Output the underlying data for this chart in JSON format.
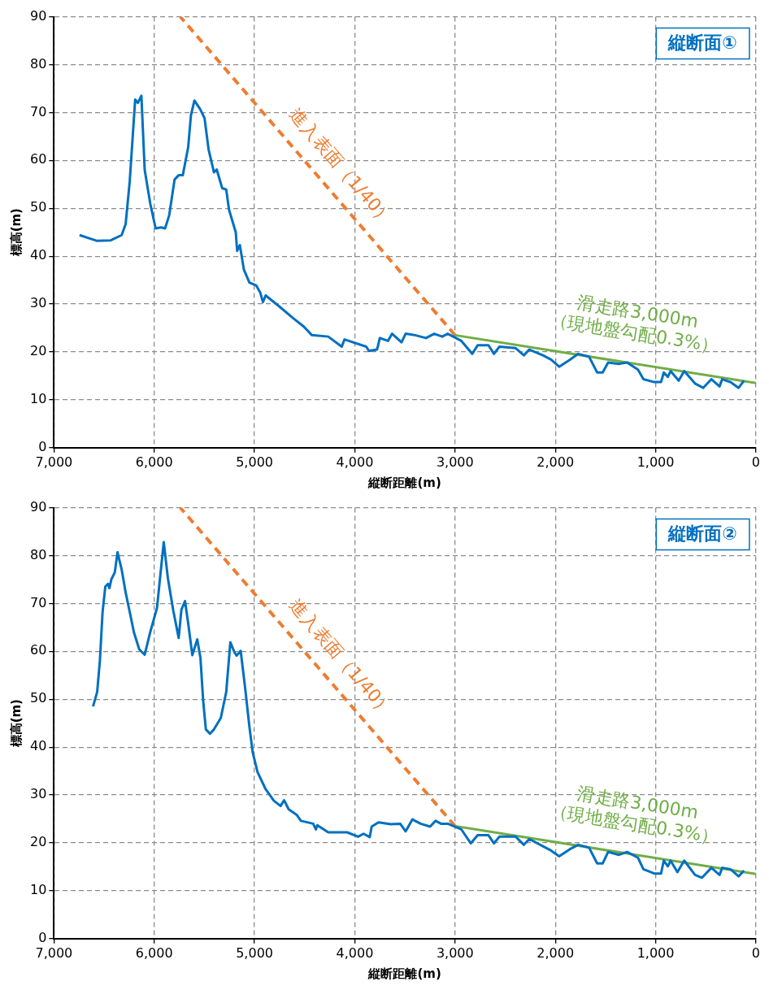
{
  "chart_data": [
    {
      "type": "line",
      "title": "縦断面①",
      "xlabel": "縦断距離(m)",
      "ylabel": "標高(m)",
      "xlim": [
        7000,
        0
      ],
      "xticks": [
        {
          "value": 7000,
          "label": "7,000"
        },
        {
          "value": 6000,
          "label": "6,000"
        },
        {
          "value": 5000,
          "label": "5,000"
        },
        {
          "value": 4000,
          "label": "4,000"
        },
        {
          "value": 3000,
          "label": "3,000"
        },
        {
          "value": 2000,
          "label": "2,000"
        },
        {
          "value": 1000,
          "label": "1,000"
        },
        0
      ],
      "ylim": [
        0,
        90
      ],
      "yticks": [
        0,
        10,
        20,
        30,
        40,
        50,
        60,
        70,
        80,
        90
      ],
      "grid": true,
      "legend": false,
      "marker": "none",
      "series": [
        {
          "color": "#0070c0",
          "line_style": "solid",
          "x": [
            6745,
            6569,
            6433,
            6325,
            6285,
            6244,
            6190,
            6163,
            6128,
            6095,
            6040,
            5986,
            5932,
            5892,
            5851,
            5797,
            5756,
            5715,
            5661,
            5634,
            5599,
            5539,
            5498,
            5458,
            5404,
            5377,
            5322,
            5282,
            5254,
            5187,
            5173,
            5146,
            5106,
            5051,
            4984,
            4943,
            4916,
            4889,
            4753,
            4618,
            4509,
            4428,
            4265,
            4130,
            4103,
            3886,
            3859,
            3778,
            3750,
            3669,
            3628,
            3534,
            3493,
            3398,
            3290,
            3208,
            3128,
            3073,
            2937,
            2829,
            2775,
            2667,
            2612,
            2558,
            2396,
            2314,
            2260,
            2124,
            2043,
            1962,
            1854,
            1772,
            1664,
            1583,
            1528,
            1474,
            1366,
            1285,
            1176,
            1122,
            1014,
            946,
            919,
            878,
            851,
            770,
            715,
            607,
            526,
            444,
            363,
            336,
            254,
            173,
            119
          ],
          "values": [
            44.4,
            43.2,
            43.3,
            44.4,
            46.7,
            55.7,
            72.7,
            72,
            73.5,
            58,
            51,
            45.8,
            46,
            45.8,
            48.5,
            56,
            56.9,
            56.9,
            62.8,
            69.4,
            72.5,
            70.6,
            68.8,
            62.3,
            57.5,
            58.1,
            54.2,
            53.9,
            49.7,
            45,
            41.1,
            42.3,
            37.2,
            34.5,
            33.9,
            32.4,
            30.4,
            31.8,
            29.5,
            27.1,
            25.3,
            23.5,
            23.2,
            21.1,
            22.6,
            21.1,
            20.2,
            20.5,
            22.9,
            22.3,
            23.8,
            22,
            23.8,
            23.5,
            22.9,
            23.8,
            23.2,
            23.8,
            22.3,
            19.6,
            21.4,
            21.4,
            19.6,
            21.1,
            20.8,
            19.3,
            20.5,
            19.3,
            18.4,
            16.9,
            18.4,
            19.6,
            19,
            15.7,
            15.7,
            17.8,
            17.5,
            17.8,
            16.3,
            14.3,
            13.7,
            13.7,
            15.7,
            14.8,
            16,
            14,
            16,
            13.4,
            12.5,
            14.3,
            12.8,
            14.3,
            13.7,
            12.5,
            14
          ]
        },
        {
          "name": "進入表面（1/40）",
          "color": "#ed7d31",
          "line_style": "dashed",
          "x": [
            3000,
            5740
          ],
          "values": [
            23.5,
            90
          ]
        },
        {
          "name": "滑走路3,000m\n（現地盤勾配0.3%）",
          "color": "#70ad47",
          "line_style": "solid",
          "x": [
            3000,
            0
          ],
          "values": [
            23.5,
            13.5
          ]
        }
      ]
    },
    {
      "type": "line",
      "title": "縦断面②",
      "xlabel": "縦断距離(m)",
      "ylabel": "標高(m)",
      "xlim": [
        7000,
        0
      ],
      "xticks": [
        {
          "value": 7000,
          "label": "7,000"
        },
        {
          "value": 6000,
          "label": "6,000"
        },
        {
          "value": 5000,
          "label": "5,000"
        },
        {
          "value": 4000,
          "label": "4,000"
        },
        {
          "value": 3000,
          "label": "3,000"
        },
        {
          "value": 2000,
          "label": "2,000"
        },
        {
          "value": 1000,
          "label": "1,000"
        },
        0
      ],
      "ylim": [
        0,
        90
      ],
      "yticks": [
        0,
        10,
        20,
        30,
        40,
        50,
        60,
        70,
        80,
        90
      ],
      "grid": true,
      "legend": false,
      "marker": "none",
      "series": [
        {
          "color": "#0070c0",
          "line_style": "solid",
          "x": [
            6610,
            6569,
            6542,
            6515,
            6488,
            6461,
            6447,
            6428,
            6393,
            6366,
            6325,
            6285,
            6244,
            6203,
            6149,
            6095,
            6040,
            5972,
            5945,
            5905,
            5864,
            5810,
            5756,
            5729,
            5693,
            5661,
            5620,
            5571,
            5539,
            5512,
            5485,
            5444,
            5404,
            5336,
            5282,
            5241,
            5200,
            5178,
            5138,
            5092,
            5051,
            5018,
            4970,
            4889,
            4807,
            4740,
            4705,
            4659,
            4577,
            4537,
            4415,
            4388,
            4374,
            4265,
            4076,
            3967,
            3913,
            3851,
            3832,
            3764,
            3642,
            3547,
            3493,
            3425,
            3344,
            3249,
            3195,
            3141,
            3073,
            2937,
            2843,
            2775,
            2667,
            2612,
            2558,
            2396,
            2314,
            2260,
            2124,
            2043,
            1962,
            1854,
            1772,
            1664,
            1583,
            1528,
            1474,
            1366,
            1285,
            1176,
            1122,
            1014,
            946,
            919,
            878,
            851,
            783,
            715,
            607,
            539,
            444,
            363,
            336,
            254,
            173,
            119
          ],
          "values": [
            48.5,
            51.5,
            58,
            68.2,
            73.5,
            74.1,
            73.2,
            75,
            76.5,
            80.7,
            77.1,
            72.3,
            68.2,
            64,
            60.4,
            59.3,
            64,
            69.1,
            74.7,
            82.8,
            75.3,
            68.5,
            62.8,
            68.7,
            70.5,
            65.8,
            59.2,
            62.5,
            58.6,
            49.7,
            43.7,
            42.8,
            43.7,
            46.1,
            51.5,
            61.9,
            59.8,
            59.1,
            60.1,
            52.1,
            44.3,
            38.9,
            34.8,
            31.2,
            28.8,
            27.7,
            28.9,
            27,
            25.8,
            24.6,
            24,
            22.8,
            23.7,
            22.2,
            22.2,
            21.3,
            21.9,
            21.2,
            23.4,
            24.3,
            23.9,
            24,
            22.4,
            24.9,
            24,
            23.4,
            24.6,
            24,
            24,
            22.8,
            19.9,
            21.6,
            21.6,
            19.9,
            21.3,
            21.3,
            19.6,
            20.8,
            19.3,
            18.4,
            17.2,
            18.7,
            19.6,
            19,
            15.7,
            15.7,
            18.1,
            17.5,
            18.1,
            16.9,
            14.5,
            13.6,
            13.6,
            16.3,
            15.1,
            16.3,
            13.9,
            16.3,
            13.3,
            12.7,
            14.8,
            13.3,
            14.8,
            14.5,
            13,
            14.2
          ]
        },
        {
          "name": "進入表面（1/40）",
          "color": "#ed7d31",
          "line_style": "dashed",
          "x": [
            3000,
            5740
          ],
          "values": [
            23.5,
            90
          ]
        },
        {
          "name": "滑走路3,000m\n（現地盤勾配0.3%）",
          "color": "#70ad47",
          "line_style": "solid",
          "x": [
            3000,
            0
          ],
          "values": [
            23.5,
            13.5
          ]
        }
      ]
    }
  ]
}
